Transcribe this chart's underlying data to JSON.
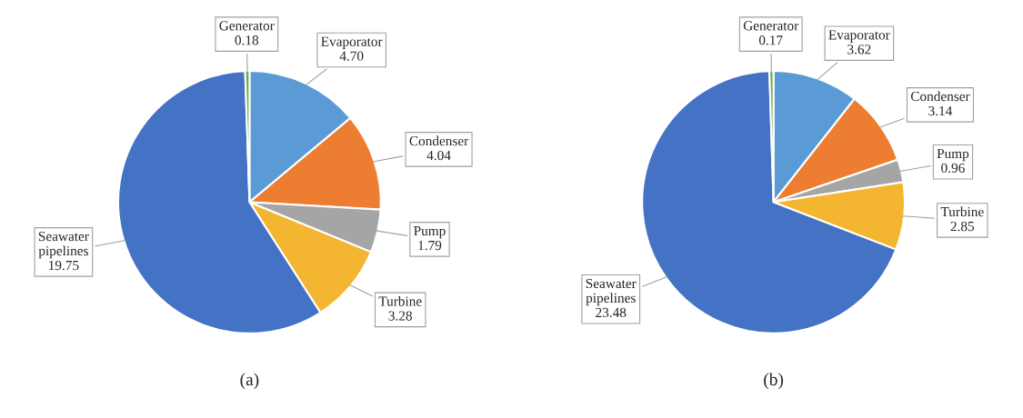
{
  "chart_data": [
    {
      "type": "pie",
      "xlabel": "(a)",
      "categories": [
        "Evaporator",
        "Condenser",
        "Pump",
        "Turbine",
        "Seawater pipelines",
        "Generator"
      ],
      "values": [
        4.7,
        4.04,
        1.79,
        3.28,
        19.75,
        0.18
      ],
      "value_labels": [
        "4.70",
        "4.04",
        "1.79",
        "3.28",
        "19.75",
        "0.18"
      ],
      "colors": [
        "#5b9bd5",
        "#ed7d31",
        "#a5a5a5",
        "#f4b630",
        "#4472c4",
        "#70ad47"
      ]
    },
    {
      "type": "pie",
      "xlabel": "(b)",
      "categories": [
        "Evaporator",
        "Condenser",
        "Pump",
        "Turbine",
        "Seawater pipelines",
        "Generator"
      ],
      "values": [
        3.62,
        3.14,
        0.96,
        2.85,
        23.48,
        0.17
      ],
      "value_labels": [
        "3.62",
        "3.14",
        "0.96",
        "2.85",
        "23.48",
        "0.17"
      ],
      "colors": [
        "#5b9bd5",
        "#ed7d31",
        "#a5a5a5",
        "#f4b630",
        "#4472c4",
        "#70ad47"
      ]
    }
  ]
}
